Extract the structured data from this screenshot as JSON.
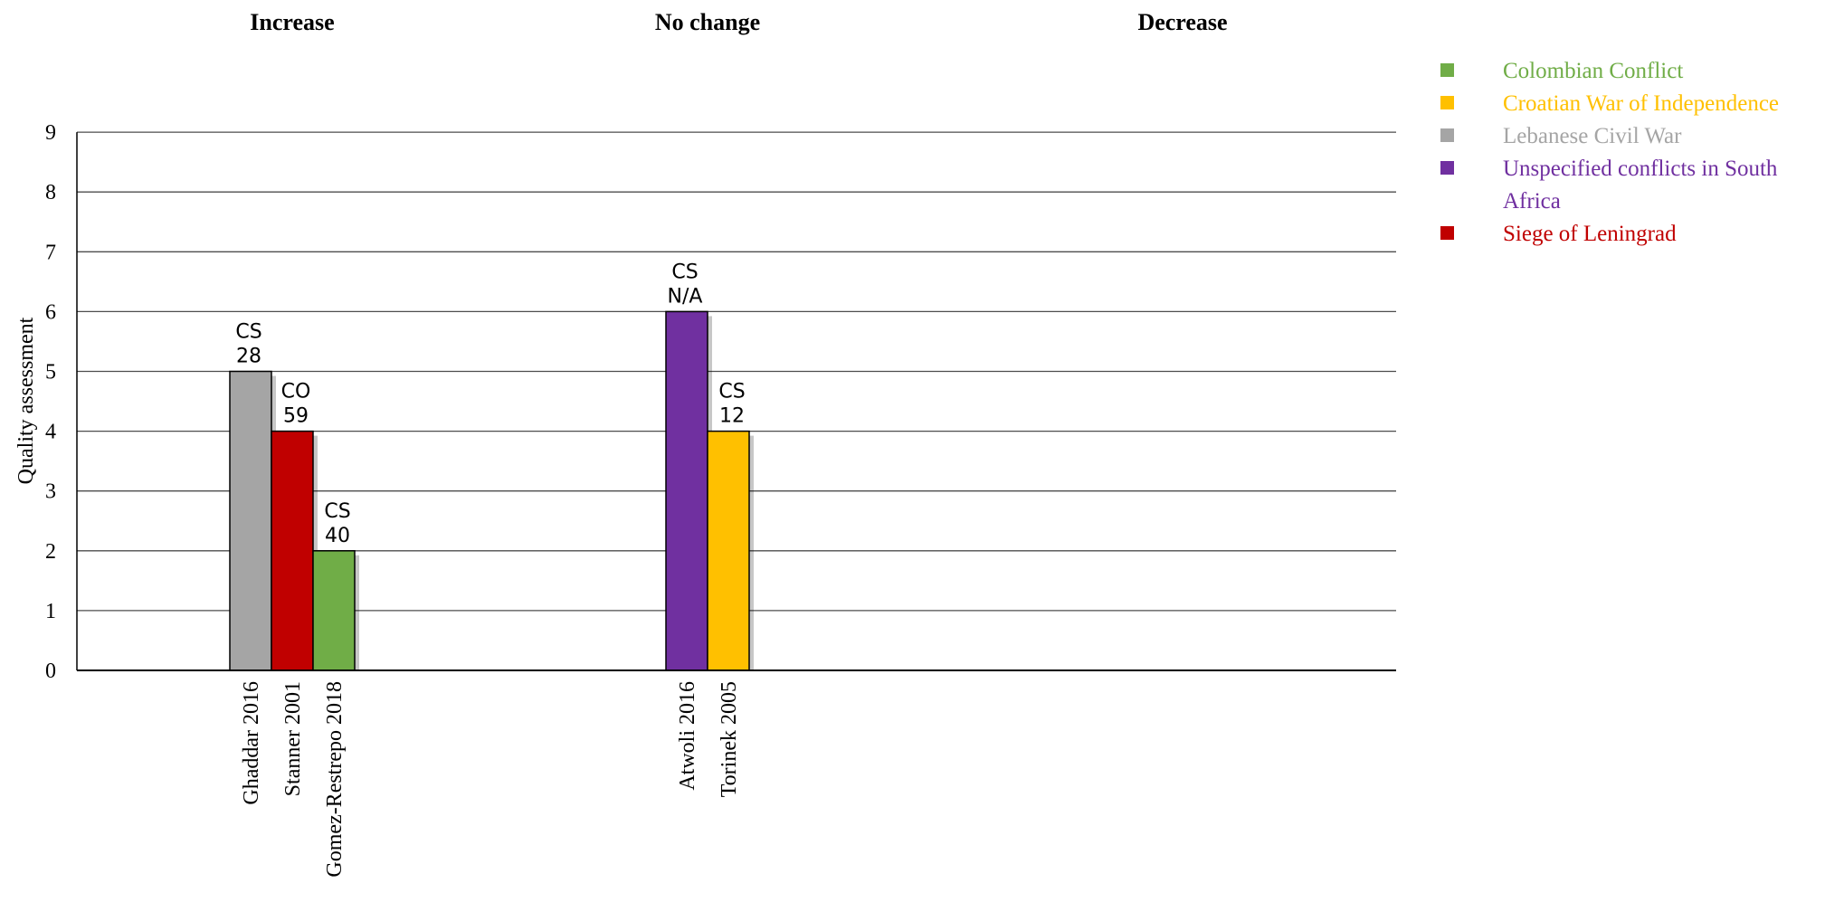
{
  "chart_data": {
    "type": "bar",
    "ylabel": "Quality assessment",
    "ylim": [
      0,
      9
    ],
    "yticks": [
      "0",
      "1",
      "2",
      "3",
      "4",
      "5",
      "6",
      "7",
      "8",
      "9"
    ],
    "grid": true,
    "legend_position": "top-right",
    "groups": [
      {
        "name": "Increase",
        "bars": [
          {
            "study": "Ghaddar 2016",
            "value": 5,
            "design": "CS",
            "n": "28",
            "series": "Lebanese Civil War"
          },
          {
            "study": "Stanner 2001",
            "value": 4,
            "design": "CO",
            "n": "59",
            "series": "Siege of Leningrad"
          },
          {
            "study": "Gomez-Restrepo 2018",
            "value": 2,
            "design": "CS",
            "n": "40",
            "series": "Colombian Conflict"
          }
        ]
      },
      {
        "name": "No change",
        "bars": [
          {
            "study": "Atwoli 2016",
            "value": 6,
            "design": "CS",
            "n": "N/A",
            "series": "Unspecified conflicts in South Africa"
          },
          {
            "study": "Torinek 2005",
            "value": 4,
            "design": "CS",
            "n": "12",
            "series": "Croatian War of Independence"
          }
        ]
      },
      {
        "name": "Decrease",
        "bars": []
      }
    ],
    "series": [
      {
        "name": "Colombian Conflict",
        "color": "#70AD47",
        "label_lines": [
          "Colombian Conflict"
        ]
      },
      {
        "name": "Croatian War of Independence",
        "color": "#FFC000",
        "label_lines": [
          "Croatian War of Independence"
        ]
      },
      {
        "name": "Lebanese Civil War",
        "color": "#A5A5A5",
        "label_lines": [
          "Lebanese Civil War"
        ]
      },
      {
        "name": "Unspecified conflicts in South Africa",
        "color": "#7030A0",
        "label_lines": [
          "Unspecified conflicts in South",
          "Africa"
        ]
      },
      {
        "name": "Siege of Leningrad",
        "color": "#C00000",
        "label_lines": [
          "Siege of Leningrad"
        ]
      }
    ]
  }
}
